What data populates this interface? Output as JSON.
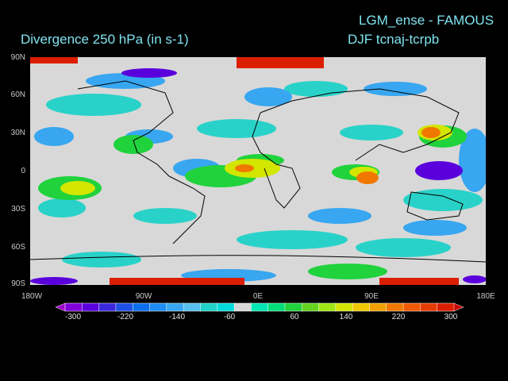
{
  "title": {
    "experiment": "LGM_ense - FAMOUS",
    "variable": "Divergence   250 hPa  (in s-1)",
    "season_run": "DJF     tcnaj-tcrpb"
  },
  "axes": {
    "lat_labels": [
      "90N",
      "60N",
      "30N",
      "0",
      "30S",
      "60S",
      "90S"
    ],
    "lon_labels": [
      "180W",
      "90W",
      "0E",
      "90E",
      "180E"
    ]
  },
  "colorbar": {
    "labels": [
      "-300",
      "-220",
      "-140",
      "-60",
      "60",
      "140",
      "220",
      "300"
    ],
    "colors": [
      "#a000c8",
      "#8200dc",
      "#5a00dc",
      "#3c28dc",
      "#1e50e6",
      "#0a6eee",
      "#1e8cf0",
      "#38a6f0",
      "#56c0ee",
      "#20d2c8",
      "#00dcdc",
      "#d8d8d8",
      "#00e6b4",
      "#00dc78",
      "#20d23c",
      "#64d21e",
      "#a0e614",
      "#d2e600",
      "#f0c800",
      "#f0a000",
      "#f07800",
      "#f05a00",
      "#e63c00",
      "#dc1e00",
      "#c80000"
    ]
  },
  "colors": {
    "background": "#000000",
    "title": "#7fe3f0",
    "neutral": "#d8d8d8"
  }
}
